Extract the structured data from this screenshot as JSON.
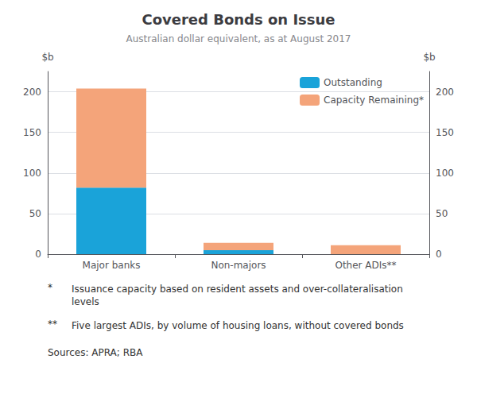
{
  "chart_data": {
    "type": "bar",
    "title": "Covered Bonds on Issue",
    "subtitle": "Australian dollar equivalent, as at August 2017",
    "categories": [
      "Major banks",
      "Non-majors",
      "Other ADIs**"
    ],
    "series": [
      {
        "name": "Outstanding",
        "color": "#1aa3d9",
        "values": [
          82,
          5,
          0
        ]
      },
      {
        "name": "Capacity Remaining*",
        "color": "#f4a47a",
        "values": [
          122,
          9,
          11
        ]
      }
    ],
    "stacked": true,
    "ylim": [
      0,
      225
    ],
    "yticks": [
      0,
      50,
      100,
      150,
      200
    ],
    "y2lim": [
      0,
      225
    ],
    "y2ticks": [
      0,
      50,
      100,
      150,
      200
    ],
    "ylabel": "$b",
    "y2label": "$b",
    "grid": true,
    "legend": "upper right",
    "annotations": [
      {
        "marker": "*",
        "text": "Issuance capacity based on resident assets and over-collateralisation\nlevels"
      },
      {
        "marker": "**",
        "text": "Five largest ADIs, by volume of housing loans, without covered bonds"
      }
    ],
    "source": "Sources: APRA; RBA"
  }
}
